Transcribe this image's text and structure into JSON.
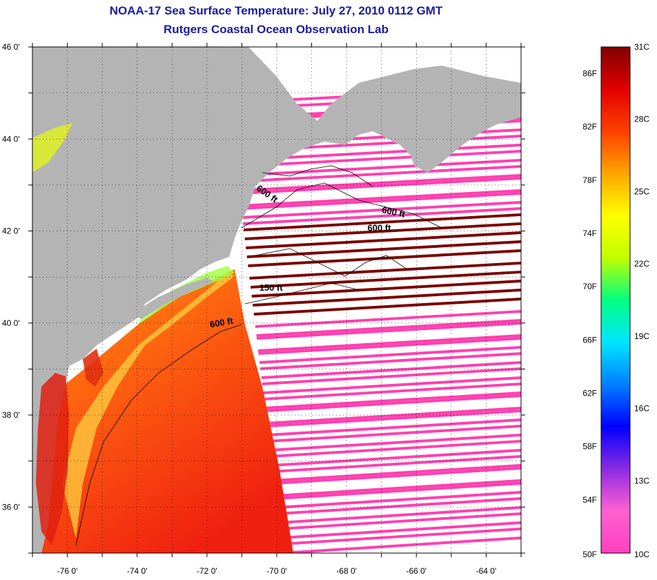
{
  "title": "NOAA-17 Sea Surface Temperature:  July 27, 2010 0112 GMT",
  "subtitle": "Rutgers Coastal Ocean Observation Lab",
  "map": {
    "lon_range": [
      -77,
      -63
    ],
    "lat_range": [
      35,
      46
    ],
    "lon_ticks": [
      "-76 0'",
      "-74 0'",
      "-72 0'",
      "-70 0'",
      "-68 0'",
      "-66 0'",
      "-64 0'"
    ],
    "lat_ticks": [
      "46 0'",
      "44 0'",
      "42 0'",
      "40 0'",
      "38 0'",
      "36 0'"
    ],
    "contour_labels": [
      {
        "text": "600 ft",
        "lon": -70.6,
        "lat": 42.9,
        "angle": 35
      },
      {
        "text": "600 ft",
        "lon": -67.0,
        "lat": 42.4,
        "angle": 12
      },
      {
        "text": "600 ft",
        "lon": -67.4,
        "lat": 42.0,
        "angle": 0
      },
      {
        "text": "150 ft",
        "lon": -70.5,
        "lat": 40.7,
        "angle": 0
      },
      {
        "text": "600 ft",
        "lon": -71.9,
        "lat": 39.9,
        "angle": -10
      }
    ],
    "land_color": "#b4b4b4",
    "ocean_no_data_color": "#ffffff"
  },
  "colorbar": {
    "top_label": "31C",
    "bottom_label_f": "50F",
    "bottom_label_c": "10C",
    "f_labels": [
      "86F",
      "82F",
      "78F",
      "74F",
      "70F",
      "66F",
      "62F",
      "58F",
      "54F"
    ],
    "c_labels": [
      "28C",
      "25C",
      "22C",
      "19C",
      "16C",
      "13C"
    ],
    "stops": [
      "#ff40c0",
      "#ff60d0",
      "#8a2be2",
      "#0000ff",
      "#0080ff",
      "#00e5ff",
      "#00ff80",
      "#c0ff00",
      "#ffff00",
      "#ffa500",
      "#ff4000",
      "#e00000",
      "#800000"
    ]
  }
}
